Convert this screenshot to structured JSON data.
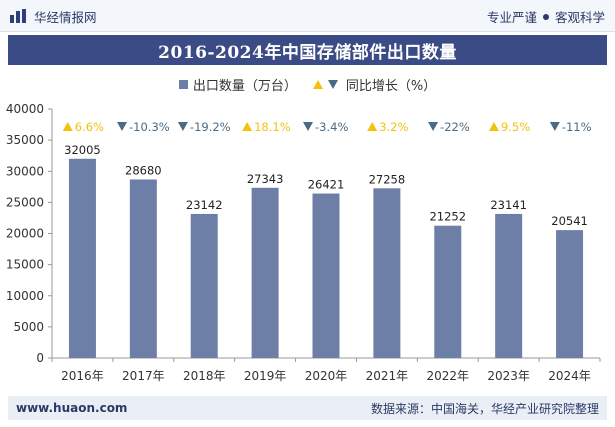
{
  "header": {
    "brand_name": "华经情报网",
    "slogan_left": "专业严谨",
    "slogan_right": "客观科学"
  },
  "footer": {
    "url": "www.huaon.com",
    "source": "数据来源：中国海关，华经产业研究院整理"
  },
  "colors": {
    "bar": "#6d7fa6",
    "up": "#f4c20d",
    "down": "#4a6b86",
    "title_bg": "#3b4b86"
  },
  "chart_data": {
    "type": "bar",
    "title": "2016-2024年中国存储部件出口数量",
    "legend": {
      "bar_label": "出口数量（万台）",
      "line_label": "同比增长（%）"
    },
    "categories": [
      "2016年",
      "2017年",
      "2018年",
      "2019年",
      "2020年",
      "2021年",
      "2022年",
      "2023年",
      "2024年"
    ],
    "series": [
      {
        "name": "出口数量（万台）",
        "values": [
          32005,
          28680,
          23142,
          27343,
          26421,
          27258,
          21252,
          23141,
          20541
        ]
      }
    ],
    "growth": [
      {
        "label": "6.6%",
        "direction": "up"
      },
      {
        "label": "-10.3%",
        "direction": "down"
      },
      {
        "label": "-19.2%",
        "direction": "down"
      },
      {
        "label": "18.1%",
        "direction": "up"
      },
      {
        "label": "-3.4%",
        "direction": "down"
      },
      {
        "label": "3.2%",
        "direction": "up"
      },
      {
        "label": "-22%",
        "direction": "down"
      },
      {
        "label": "9.5%",
        "direction": "up"
      },
      {
        "label": "-11%",
        "direction": "down"
      }
    ],
    "yticks": [
      0,
      5000,
      10000,
      15000,
      20000,
      25000,
      30000,
      35000,
      40000
    ],
    "ylim": [
      0,
      40000
    ],
    "grid": false
  }
}
